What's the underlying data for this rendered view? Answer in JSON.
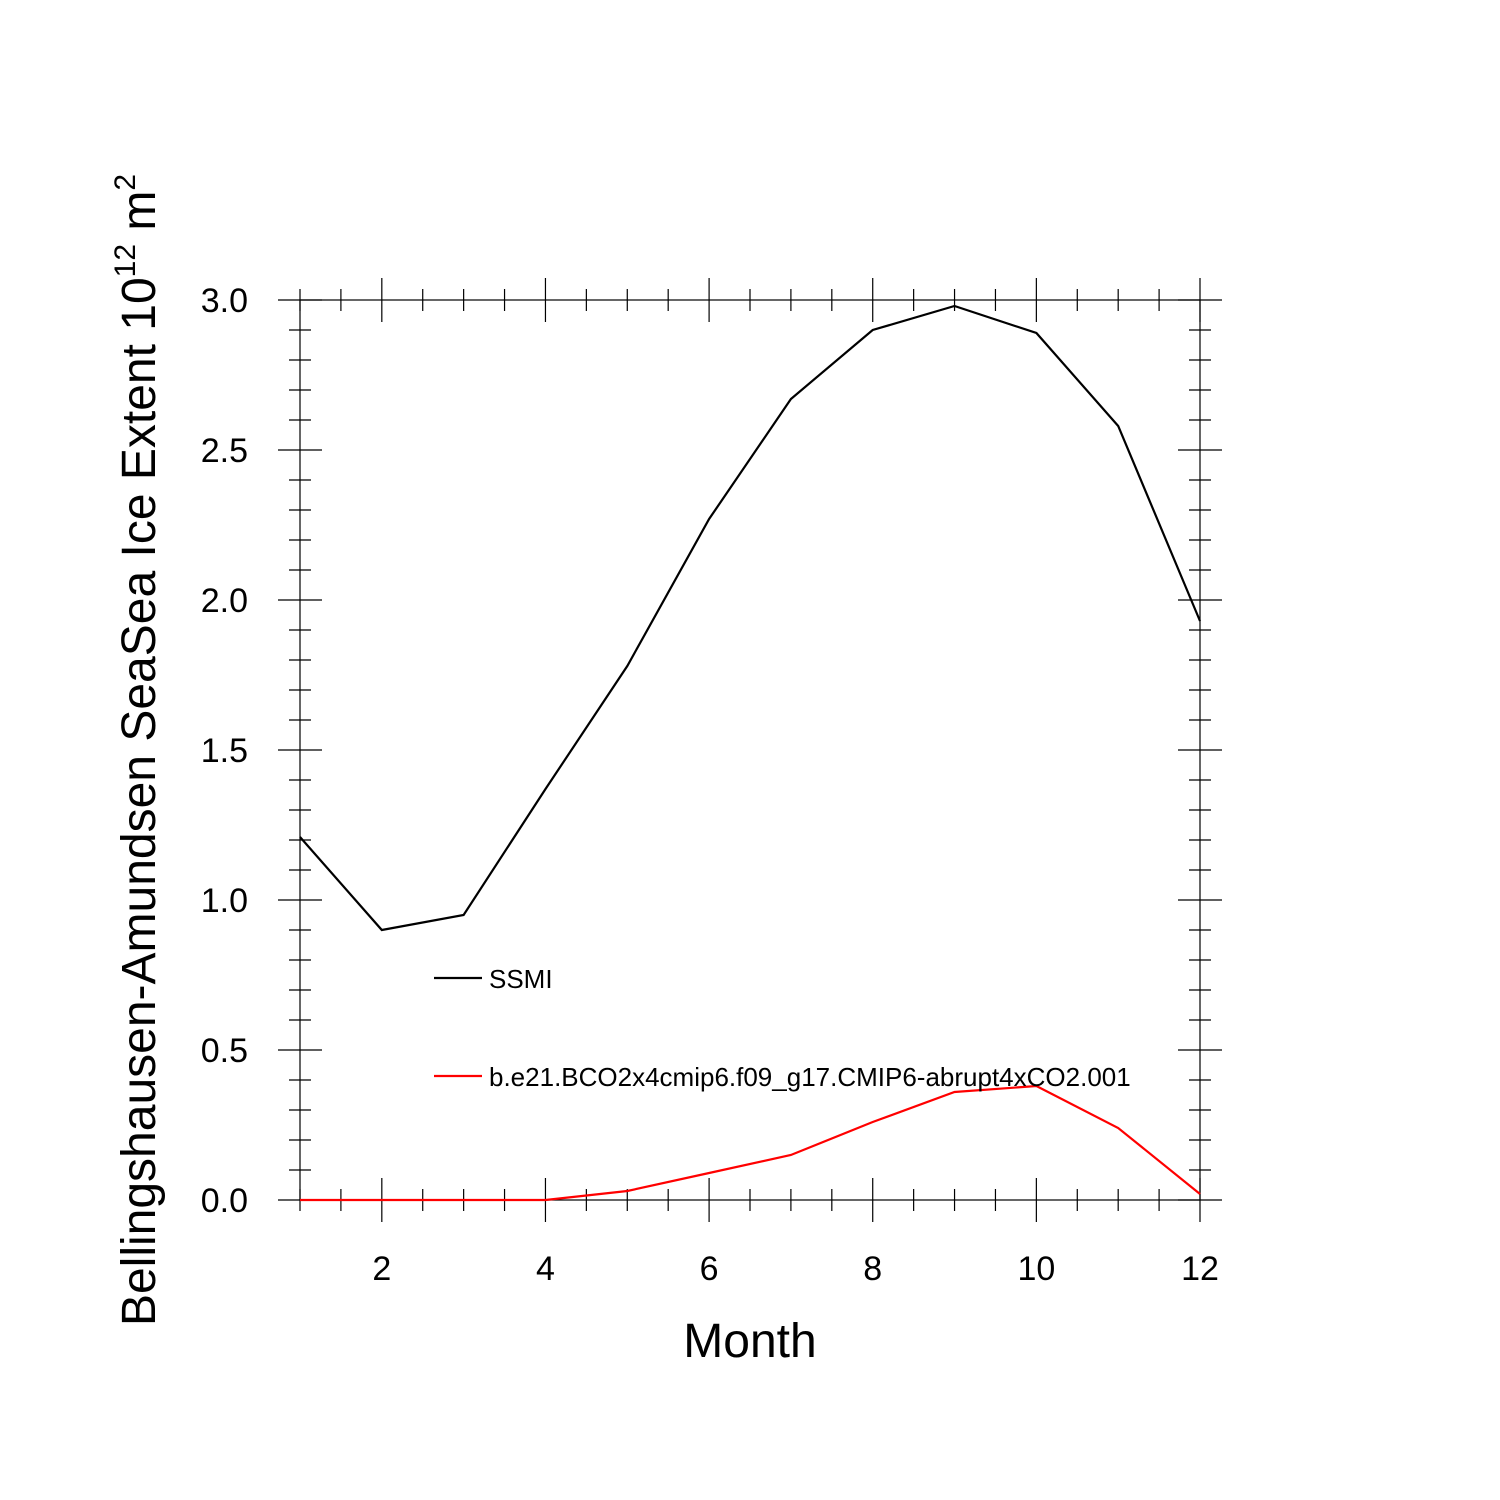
{
  "chart_data": {
    "type": "line",
    "xlabel": "Month",
    "ylabel": {
      "main": "Bellingshausen-Amundsen SeaSea Ice Extent 10",
      "exponent": "12",
      "unit": " m",
      "unit_exponent": "2"
    },
    "x": [
      1,
      2,
      3,
      4,
      5,
      6,
      7,
      8,
      9,
      10,
      11,
      12
    ],
    "xlim": [
      1,
      12
    ],
    "ylim": [
      0,
      3
    ],
    "x_ticks": [
      2,
      4,
      6,
      8,
      10,
      12
    ],
    "y_ticks": [
      "0.0",
      "0.5",
      "1.0",
      "1.5",
      "2.0",
      "2.5",
      "3.0"
    ],
    "grid": false,
    "legend_position": "inside-left",
    "series": [
      {
        "name": "SSMI",
        "color": "#000000",
        "values": [
          1.21,
          0.9,
          0.95,
          1.37,
          1.78,
          2.27,
          2.67,
          2.9,
          2.98,
          2.89,
          2.58,
          1.93
        ]
      },
      {
        "name": "b.e21.BCO2x4cmip6.f09_g17.CMIP6-abrupt4xCO2.001",
        "color": "#ff0000",
        "values": [
          0.0,
          0.0,
          0.0,
          0.0,
          0.03,
          0.09,
          0.15,
          0.26,
          0.36,
          0.38,
          0.24,
          0.02
        ]
      }
    ]
  }
}
